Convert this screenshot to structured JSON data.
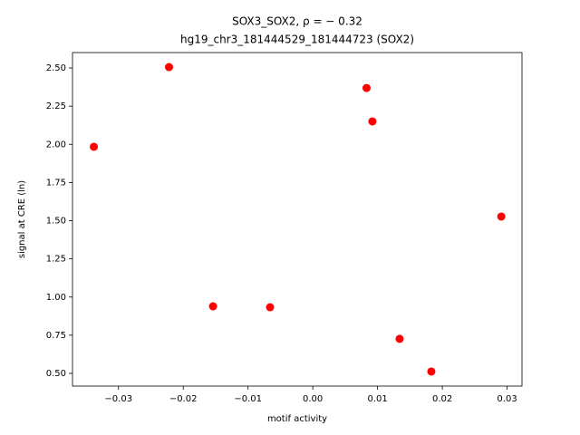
{
  "chart_data": {
    "type": "scatter",
    "title": "SOX3_SOX2, ρ = − 0.32",
    "subtitle": "hg19_chr3_181444529_181444723 (SOX2)",
    "x_label": "motif activity",
    "y_label": "signal at CRE (ln)",
    "color": "#ff0000",
    "x": [
      -0.0338,
      -0.0222,
      -0.0154,
      -0.0066,
      0.0083,
      0.0092,
      0.0134,
      0.0183,
      0.0291
    ],
    "values": [
      1.984,
      2.506,
      0.939,
      0.933,
      2.369,
      2.15,
      0.726,
      0.512,
      1.527
    ],
    "xlim": [
      -0.0371,
      0.0323
    ],
    "ylim": [
      0.417,
      2.601
    ],
    "xticks": [
      {
        "value": -0.03,
        "label": "−0.03"
      },
      {
        "value": -0.02,
        "label": "−0.02"
      },
      {
        "value": -0.01,
        "label": "−0.01"
      },
      {
        "value": 0,
        "label": "0.00"
      },
      0.01,
      0.02,
      0.03
    ],
    "yticks": [
      {
        "value": 0.5,
        "label": "0.50"
      },
      0.75,
      {
        "value": 1,
        "label": "1.00"
      },
      1.25,
      {
        "value": 1.5,
        "label": "1.50"
      },
      1.75,
      {
        "value": 2,
        "label": "2.00"
      },
      2.25,
      {
        "value": 2.5,
        "label": "2.50"
      }
    ],
    "grid": false
  }
}
